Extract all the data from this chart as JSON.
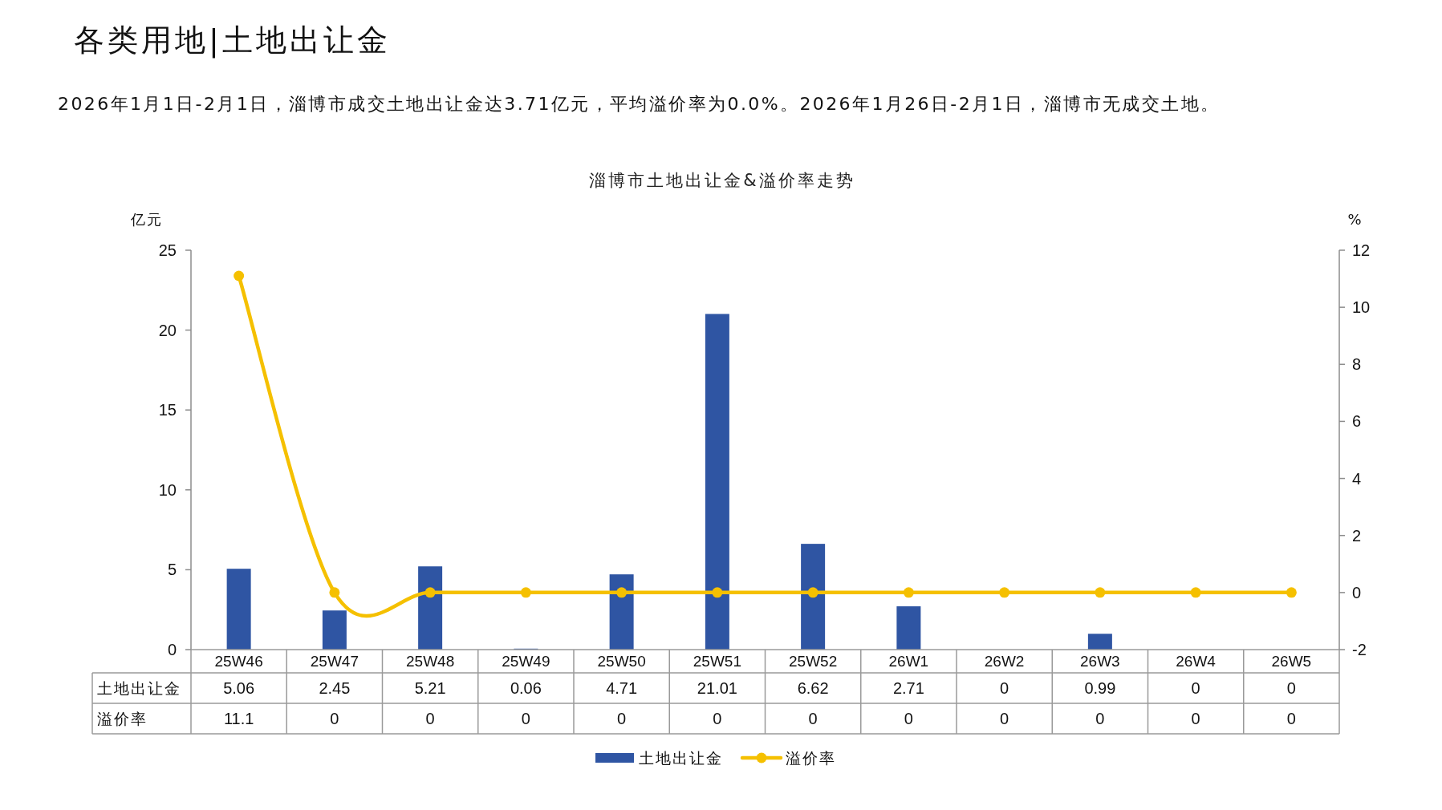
{
  "chart_data": {
    "type": "bar",
    "title": "淄博市土地出让金&溢价率走势",
    "annotations": [
      "各类用地|土地出让金",
      "2026年1月1日-2月1日，淄博市成交土地出让金达3.71亿元，平均溢价率为0.0%。2026年1月26日-2月1日，淄博市无成交土地。"
    ],
    "ylabel": "亿元",
    "y2label": "%",
    "categories": [
      "25W46",
      "25W47",
      "25W48",
      "25W49",
      "25W50",
      "25W51",
      "25W52",
      "26W1",
      "26W2",
      "26W3",
      "26W4",
      "26W5"
    ],
    "series": [
      {
        "name": "土地出让金",
        "color": "#2f55a3",
        "values": [
          5.06,
          2.45,
          5.21,
          0.06,
          4.71,
          21.01,
          6.62,
          2.71,
          0,
          0.99,
          0,
          0
        ]
      },
      {
        "name": "溢价率",
        "type": "line",
        "axis": "y2",
        "color": "#f5c000",
        "values": [
          11.1,
          0,
          0,
          0,
          0,
          0,
          0,
          0,
          0,
          0,
          0,
          0
        ]
      }
    ],
    "ylim": [
      0,
      25
    ],
    "yticks": [
      0,
      5,
      10,
      15,
      20,
      25
    ],
    "y2lim": [
      -2,
      12
    ],
    "y2ticks": [
      -2,
      0,
      2,
      4,
      6,
      8,
      10,
      12
    ],
    "marker": "circle",
    "data_labels": true,
    "legend": "bottom"
  }
}
